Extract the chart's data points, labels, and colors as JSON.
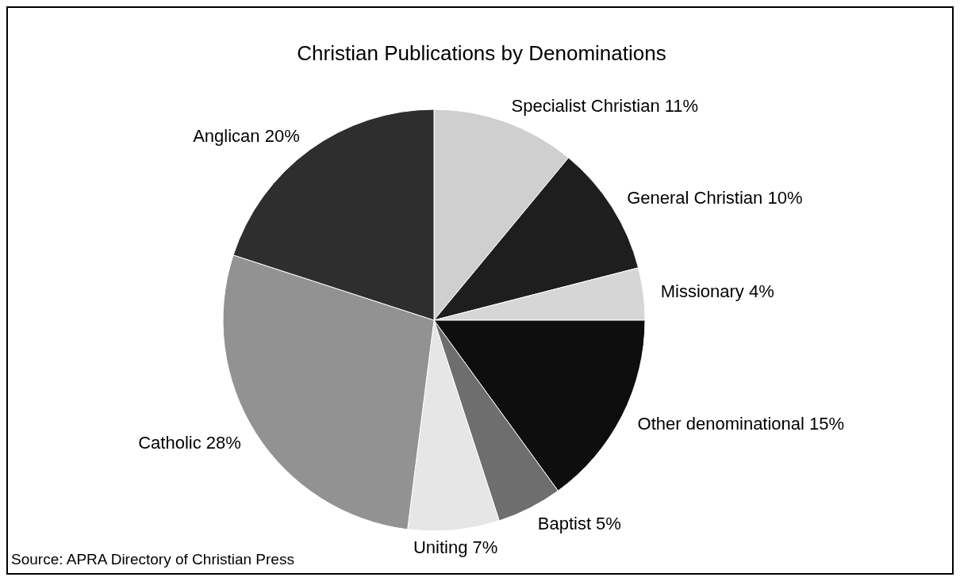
{
  "chart_data": {
    "type": "pie",
    "title": "Christian Publications by Denominations",
    "categories": [
      "Specialist Christian",
      "General Christian",
      "Missionary",
      "Other denominational",
      "Baptist",
      "Uniting",
      "Catholic",
      "Anglican"
    ],
    "values": [
      11,
      10,
      4,
      15,
      5,
      7,
      28,
      20
    ],
    "value_labels": [
      "11%",
      "10%",
      "4%",
      "15%",
      "5%",
      "7%",
      "28%",
      "20%"
    ],
    "colors": [
      "#cfcfcf",
      "#1e1e1e",
      "#d6d6d6",
      "#0e0e0e",
      "#6e6e6e",
      "#e6e6e6",
      "#929292",
      "#2e2e2e"
    ],
    "legend": false,
    "annotations": [
      "Source: APRA Directory of Christian Press"
    ]
  }
}
